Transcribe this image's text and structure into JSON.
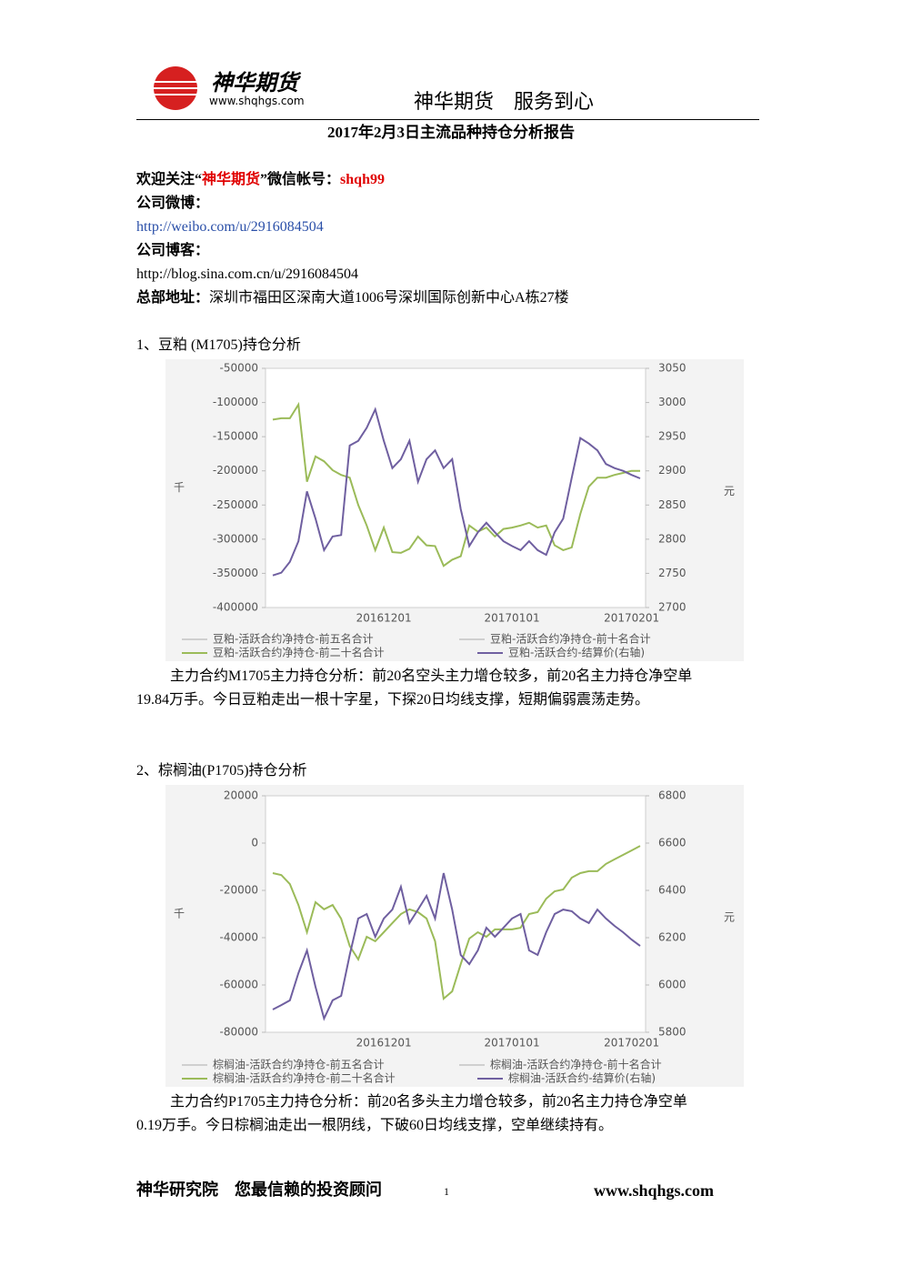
{
  "header": {
    "logo_text": "神华期货",
    "logo_url": "www.shqhgs.com",
    "slogan": "神华期货　服务到心"
  },
  "title": "2017年2月3日主流品种持仓分析报告",
  "contact": {
    "welcome_prefix": "欢迎关注“",
    "welcome_name": "神华期货",
    "welcome_mid": "”微信帐号：",
    "welcome_account": "shqh99",
    "weibo_label": "公司微博：",
    "weibo_url": "http://weibo.com/u/2916084504",
    "blog_label": "公司博客：",
    "blog_url": "http://blog.sina.com.cn/u/2916084504",
    "address_label": "总部地址：",
    "address": "深圳市福田区深南大道1006号深圳国际创新中心A栋27楼"
  },
  "sections": [
    {
      "heading": "1、豆粕 (M1705)持仓分析",
      "paragraph": [
        "主力合约M1705主力持仓分析：前20名空头主力增仓较多，前20名主力持仓净空单",
        "19.84万手。今日豆粕走出一根十字星，下探20日均线支撑，短期偏弱震荡走势。"
      ]
    },
    {
      "heading": "2、棕榈油(P1705)持仓分析",
      "paragraph": [
        "主力合约P1705主力持仓分析：前20名多头主力增仓较多，前20名主力持仓净空单",
        "0.19万手。今日棕榈油走出一根阴线，下破60日均线支撑，空单继续持有。"
      ]
    }
  ],
  "footer": {
    "left": "神华研究院　您最信赖的投资顾问",
    "page": "1",
    "url": "www.shqhgs.com"
  },
  "chart_data": [
    {
      "type": "line",
      "ylabel": "千",
      "y2label": "元",
      "categories": [
        null,
        null,
        null,
        null,
        null,
        null,
        null,
        null,
        null,
        null,
        null,
        null,
        null,
        "20161201",
        null,
        null,
        null,
        null,
        null,
        null,
        null,
        null,
        null,
        null,
        null,
        null,
        null,
        null,
        "20170101",
        null,
        null,
        null,
        null,
        null,
        null,
        null,
        null,
        null,
        null,
        null,
        null,
        null,
        "20170201",
        null
      ],
      "ylim": [
        -400000,
        -50000
      ],
      "yticks": [
        -50000,
        -100000,
        -150000,
        -200000,
        -250000,
        -300000,
        -350000,
        -400000
      ],
      "y2lim": [
        2700,
        3050
      ],
      "y2ticks": [
        3050,
        3000,
        2950,
        2900,
        2850,
        2800,
        2750,
        2700
      ],
      "series": [
        {
          "name": "豆粕-活跃合约净持仓-前五名合计",
          "color": "#cfcfcf",
          "values": [
            null,
            null,
            null,
            null,
            null,
            null,
            null,
            null,
            null,
            null,
            null,
            null,
            null,
            null,
            null,
            null,
            null,
            null,
            null,
            null,
            null,
            null,
            null,
            null,
            null,
            null,
            null,
            null,
            null,
            null,
            null,
            null,
            null,
            null,
            null,
            null,
            null,
            null,
            null,
            null,
            null,
            null,
            null,
            null
          ]
        },
        {
          "name": "豆粕-活跃合约净持仓-前十名合计",
          "color": "#cfcfcf",
          "values": [
            null,
            null,
            null,
            null,
            null,
            null,
            null,
            null,
            null,
            null,
            null,
            null,
            null,
            null,
            null,
            null,
            null,
            null,
            null,
            null,
            null,
            null,
            null,
            null,
            null,
            null,
            null,
            null,
            null,
            null,
            null,
            null,
            null,
            null,
            null,
            null,
            null,
            null,
            null,
            null,
            null,
            null,
            null,
            null
          ]
        },
        {
          "name": "豆粕-活跃合约净持仓-前二十名合计",
          "color": "#9bbb59",
          "values": [
            -125000,
            -123000,
            -123000,
            -103000,
            -216000,
            -179000,
            -186000,
            -199000,
            -206000,
            -210000,
            -250000,
            -280000,
            -316000,
            -283000,
            -319000,
            -320000,
            -314000,
            -296000,
            -309000,
            -310000,
            -339000,
            -330000,
            -325000,
            -280000,
            -289000,
            -283000,
            -296000,
            -285000,
            -283000,
            -280000,
            -276000,
            -283000,
            -280000,
            -309000,
            -316000,
            -312000,
            -263000,
            -223000,
            -210000,
            -210000,
            -206000,
            -203000,
            -200000,
            -200000
          ]
        },
        {
          "name": "豆粕-活跃合约-结算价(右轴)",
          "color": "#6f5fa0",
          "axis": "y2",
          "values": [
            2747,
            2751,
            2767,
            2797,
            2870,
            2830,
            2784,
            2804,
            2806,
            2937,
            2944,
            2963,
            2990,
            2944,
            2904,
            2917,
            2944,
            2884,
            2917,
            2930,
            2904,
            2917,
            2844,
            2790,
            2810,
            2824,
            2810,
            2797,
            2790,
            2784,
            2797,
            2784,
            2777,
            2810,
            2830,
            2890,
            2948,
            2940,
            2930,
            2910,
            2904,
            2900,
            2894,
            2889
          ]
        }
      ]
    },
    {
      "type": "line",
      "ylabel": "千",
      "y2label": "元",
      "categories": [
        null,
        null,
        null,
        null,
        null,
        null,
        null,
        null,
        null,
        null,
        null,
        null,
        null,
        "20161201",
        null,
        null,
        null,
        null,
        null,
        null,
        null,
        null,
        null,
        null,
        null,
        null,
        null,
        null,
        "20170101",
        null,
        null,
        null,
        null,
        null,
        null,
        null,
        null,
        null,
        null,
        null,
        null,
        null,
        "20170201",
        null
      ],
      "ylim": [
        -80000,
        20000
      ],
      "yticks": [
        20000,
        0,
        -20000,
        -40000,
        -60000,
        -80000
      ],
      "y2lim": [
        5800,
        6800
      ],
      "y2ticks": [
        6800,
        6600,
        6400,
        6200,
        6000,
        5800
      ],
      "series": [
        {
          "name": "棕榈油-活跃合约净持仓-前五名合计",
          "color": "#cfcfcf",
          "values": [
            null,
            null,
            null,
            null,
            null,
            null,
            null,
            null,
            null,
            null,
            null,
            null,
            null,
            null,
            null,
            null,
            null,
            null,
            null,
            null,
            null,
            null,
            null,
            null,
            null,
            null,
            null,
            null,
            null,
            null,
            null,
            null,
            null,
            null,
            null,
            null,
            null,
            null,
            null,
            null,
            null,
            null,
            null,
            null
          ]
        },
        {
          "name": "棕榈油-活跃合约净持仓-前十名合计",
          "color": "#cfcfcf",
          "values": [
            null,
            null,
            null,
            null,
            null,
            null,
            null,
            null,
            null,
            null,
            null,
            null,
            null,
            null,
            null,
            null,
            null,
            null,
            null,
            null,
            null,
            null,
            null,
            null,
            null,
            null,
            null,
            null,
            null,
            null,
            null,
            null,
            null,
            null,
            null,
            null,
            null,
            null,
            null,
            null,
            null,
            null,
            null,
            null
          ]
        },
        {
          "name": "棕榈油-活跃合约净持仓-前二十名合计",
          "color": "#9bbb59",
          "values": [
            -12700,
            -13500,
            -17300,
            -26200,
            -37700,
            -25000,
            -28000,
            -26200,
            -32000,
            -43500,
            -49200,
            -39600,
            -41500,
            -37700,
            -33800,
            -30000,
            -28000,
            -29200,
            -31900,
            -41500,
            -65800,
            -62700,
            -51200,
            -40400,
            -37700,
            -39600,
            -36500,
            -36500,
            -36500,
            -35800,
            -30000,
            -29200,
            -23500,
            -20400,
            -19600,
            -14600,
            -12700,
            -11900,
            -11900,
            -8800,
            -6900,
            -5000,
            -3100,
            -1200
          ]
        },
        {
          "name": "棕榈油-活跃合约-结算价(右轴)",
          "color": "#6f5fa0",
          "axis": "y2",
          "values": [
            5896,
            5915,
            5935,
            6050,
            6146,
            5992,
            5858,
            5935,
            5954,
            6127,
            6281,
            6300,
            6204,
            6281,
            6319,
            6415,
            6262,
            6319,
            6377,
            6281,
            6473,
            6319,
            6127,
            6088,
            6146,
            6242,
            6204,
            6242,
            6281,
            6300,
            6146,
            6127,
            6223,
            6300,
            6319,
            6312,
            6281,
            6262,
            6319,
            6281,
            6250,
            6223,
            6192,
            6165
          ]
        }
      ]
    }
  ]
}
